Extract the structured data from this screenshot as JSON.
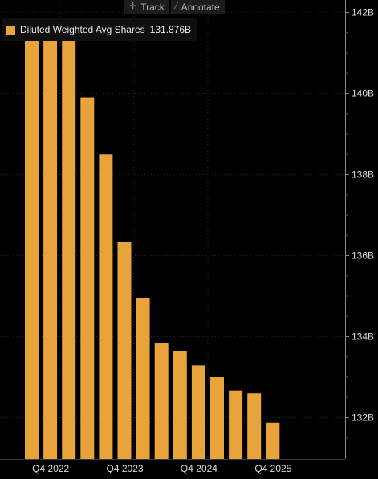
{
  "toolbar": {
    "track_label": "Track",
    "track_icon": "crosshair-icon",
    "annotate_label": "Annotate",
    "annotate_icon": "pencil-icon"
  },
  "legend": {
    "series_name": "Diluted Weighted Avg Shares",
    "last_value": "131.876B"
  },
  "colors": {
    "bar": "#e8a33a",
    "background": "#000000",
    "grid": "#2b2b2b",
    "tick_text": "#d9d9d9",
    "axis": "#8a8a8a"
  },
  "chart_data": {
    "type": "bar",
    "title": "",
    "xlabel": "",
    "ylabel": "",
    "ylim": [
      131,
      142.2
    ],
    "y_ticks": [
      132,
      134,
      136,
      138,
      140,
      142
    ],
    "y_tick_labels": [
      "132B",
      "134B",
      "136B",
      "138B",
      "140B",
      "142B"
    ],
    "x_tick_labels": [
      {
        "label": "Q4 2022",
        "bar_index": 1
      },
      {
        "label": "Q4 2023",
        "bar_index": 5
      },
      {
        "label": "Q4 2024",
        "bar_index": 9
      },
      {
        "label": "Q4 2025",
        "bar_index": 13
      }
    ],
    "grid": true,
    "legend_position": "top-left",
    "series": [
      {
        "name": "Diluted Weighted Avg Shares",
        "values": [
          141.41,
          141.34,
          141.37,
          139.9,
          138.5,
          136.34,
          134.95,
          133.85,
          133.65,
          133.29,
          133.0,
          132.67,
          132.6,
          131.876
        ]
      }
    ]
  }
}
